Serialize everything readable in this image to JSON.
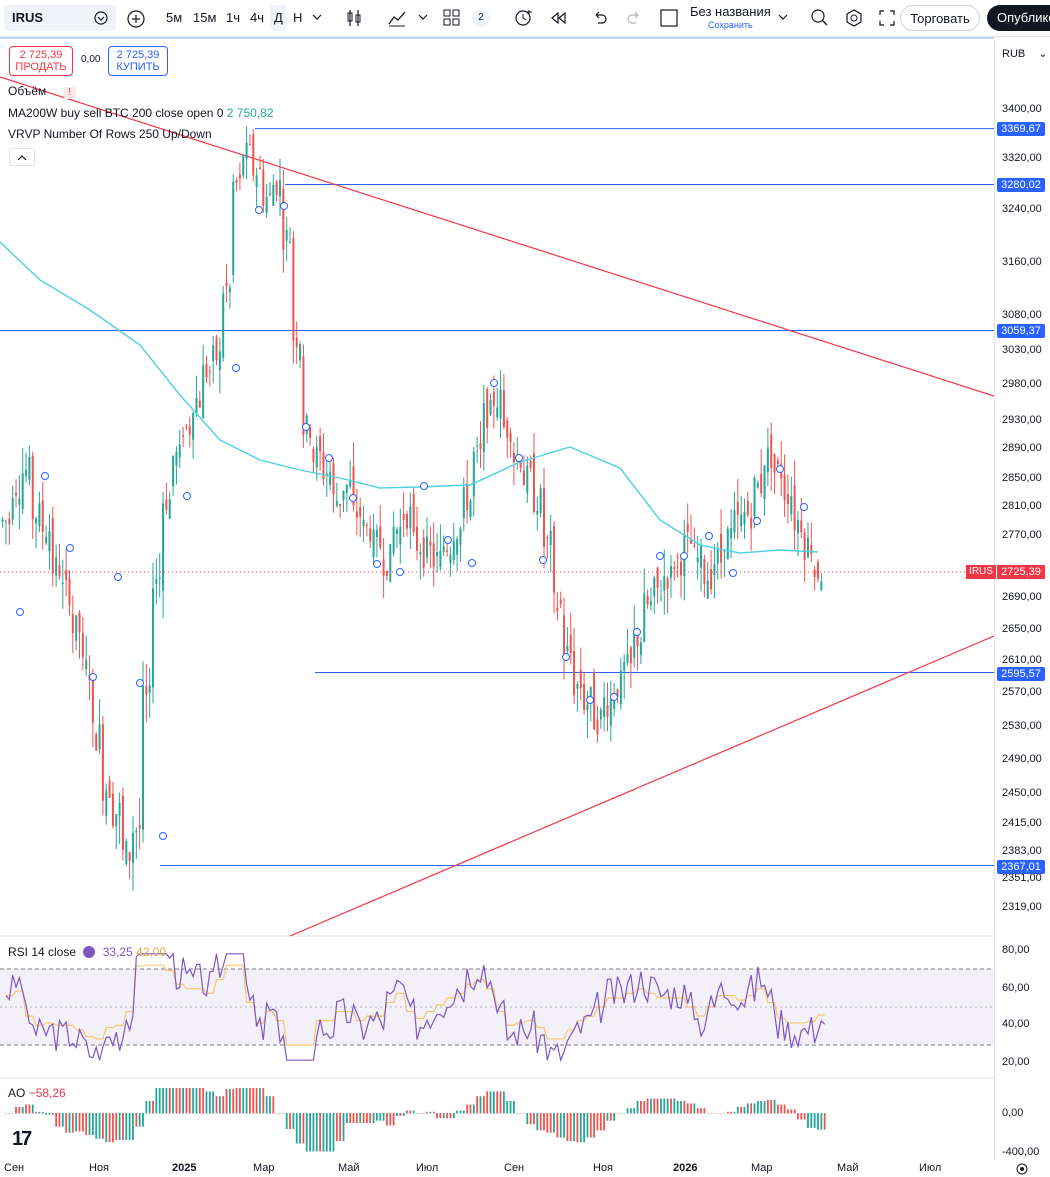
{
  "toolbar": {
    "symbol": "IRUS",
    "intervals": [
      "5м",
      "15м",
      "1ч",
      "4ч",
      "Д",
      "Н"
    ],
    "layout_count": "2",
    "layout_name": "Без названия",
    "layout_status": "Сохранить",
    "trade_label": "Торговать",
    "publish_label": "Опублико"
  },
  "order": {
    "sell_price": "2 725,39",
    "sell_label": "ПРОДАТЬ",
    "spread": "0,00",
    "buy_price": "2 725,39",
    "buy_label": "КУПИТЬ"
  },
  "legend": {
    "volume": "Объём",
    "ma_name": "MA200W buy sell BTC 200 close open 0",
    "ma_value": "2 750,82",
    "vrvp": "VRVP Number Of Rows 250 Up/Down",
    "rsi_name": "RSI 14 close",
    "rsi_val1": "33,25",
    "rsi_val2": "42,00",
    "ao_name": "AO",
    "ao_value": "−58,26"
  },
  "axis": {
    "currency": "RUB",
    "price_labels": [
      "3400,00",
      "3320,00",
      "3240,00",
      "3160,00",
      "3080,00",
      "3030,00",
      "2980,00",
      "2930,00",
      "2890,00",
      "2850,00",
      "2810,00",
      "2770,00",
      "2690,00",
      "2650,00",
      "2610,00",
      "2570,00",
      "2530,00",
      "2490,00",
      "2450,00",
      "2415,00",
      "2383,00",
      "2351,00",
      "2319,00"
    ],
    "level_labels": [
      "3369,67",
      "3280,02",
      "3059,37",
      "2595,57",
      "2367,01"
    ],
    "current_price": "2725,39",
    "current_tag": "IRUS",
    "rsi_labels": [
      "80,00",
      "60,00",
      "40,00",
      "20,00"
    ],
    "ao_labels": [
      "0,00",
      "-400,00"
    ],
    "date_labels": [
      "Сен",
      "Ноя",
      "2025",
      "Мар",
      "Май",
      "Июл",
      "Сен",
      "Ноя",
      "2026",
      "Мар",
      "Май",
      "Июл"
    ]
  },
  "colors": {
    "up": "#26a69a",
    "down": "#ef5350",
    "level": "#2962ff",
    "trend": "#f23645",
    "ma": "#4dd0e1",
    "rsi": "#7e57c2",
    "rsi_ma": "#f5c96b"
  },
  "chart_data": {
    "type": "candlestick",
    "series": [
      {
        "name": "IRUS",
        "values_approx": [
          2790,
          2840,
          2860,
          2800,
          2780,
          2730,
          2700,
          2650,
          2600,
          2520,
          2460,
          2430,
          2380,
          2410,
          2560,
          2720,
          2820,
          2880,
          2920,
          2960,
          3000,
          3020,
          3120,
          3280,
          3330,
          3300,
          3260,
          3280,
          3200,
          3050,
          2920,
          2880,
          2860,
          2820,
          2840,
          2800,
          2780,
          2760,
          2740,
          2780,
          2800,
          2760,
          2750,
          2740,
          2760,
          2780,
          2820,
          2880,
          2940,
          2960,
          2920,
          2880,
          2850,
          2820,
          2760,
          2680,
          2620,
          2580,
          2560,
          2540,
          2560,
          2580,
          2600,
          2640,
          2680,
          2700,
          2720,
          2740,
          2760,
          2740,
          2720,
          2740,
          2770,
          2790,
          2800,
          2840,
          2880,
          2860,
          2830,
          2790,
          2760,
          2725
        ]
      }
    ],
    "levels": [
      3369.67,
      3280.02,
      3059.37,
      2595.57,
      2367.01
    ],
    "last": 2725.39,
    "ylim": [
      2300,
      3420
    ]
  }
}
